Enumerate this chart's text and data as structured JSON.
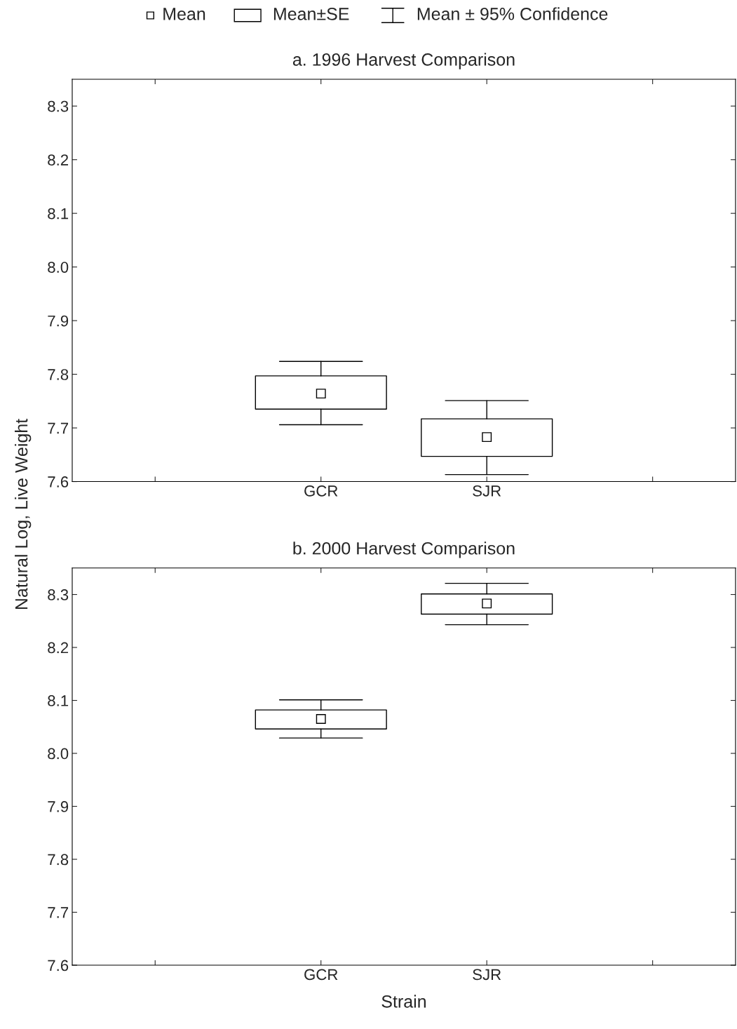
{
  "chart_data": [
    {
      "type": "box",
      "title": "a. 1996 Harvest Comparison",
      "ylabel": "Natural Log, Live Weight",
      "categories": [
        null,
        "GCR",
        "SJR",
        null
      ],
      "boxes": [
        null,
        {
          "low": 7.706,
          "q1": 7.735,
          "median": 7.764,
          "q3": 7.797,
          "high": 7.824
        },
        {
          "low": 7.613,
          "q1": 7.647,
          "median": 7.683,
          "q3": 7.717,
          "high": 7.751
        },
        null
      ],
      "ylim": [
        7.6,
        8.35
      ],
      "yticks": [
        7.6,
        7.7,
        7.8,
        7.9,
        {
          "value": 8.0,
          "label": "8.0"
        },
        8.1,
        8.2,
        8.3
      ],
      "annotations": [
        "Mean",
        "Mean±SE",
        "Mean ± 95% Confidence"
      ],
      "grid": false
    },
    {
      "type": "box",
      "title": "b. 2000 Harvest Comparison",
      "xlabel": "Strain",
      "categories": [
        null,
        "GCR",
        "SJR",
        null
      ],
      "boxes": [
        null,
        {
          "low": 8.029,
          "q1": 8.046,
          "median": 8.065,
          "q3": 8.082,
          "high": 8.101
        },
        {
          "low": 8.243,
          "q1": 8.263,
          "median": 8.283,
          "q3": 8.301,
          "high": 8.321
        },
        null
      ],
      "ylim": [
        7.6,
        8.35
      ],
      "yticks": [
        7.6,
        7.7,
        7.8,
        7.9,
        {
          "value": 8.0,
          "label": "8.0"
        },
        8.1,
        8.2,
        8.3
      ],
      "grid": false
    }
  ]
}
